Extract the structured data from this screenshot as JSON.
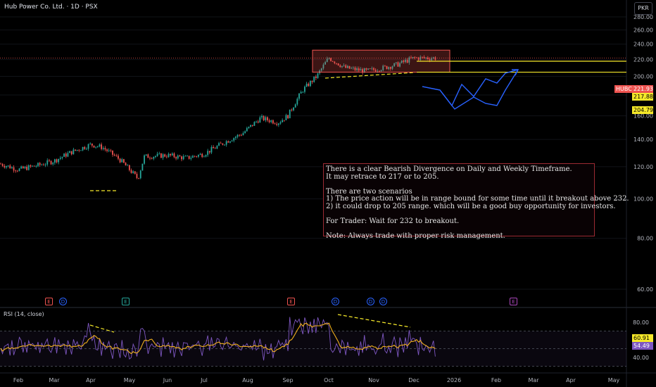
{
  "header": {
    "title": "Hub Power Co. Ltd. · 1D · PSX",
    "currency": "PKR"
  },
  "note": {
    "lines": [
      "There is a clear Bearish Divergence on Daily and Weekly Timeframe.",
      "It may retrace to 217 or to 205.",
      "",
      "There are two scenarios",
      "1) The price action will be in range bound for some time until it breakout above 232.",
      "2) it could drop to 205 range. which will be a good buy opportunity for investors.",
      "",
      "For Trader: Wait for 232 to breakout.",
      "",
      "Note: Always trade with proper risk management."
    ]
  },
  "price_tags": {
    "symbol": "HUBC",
    "last": "221.93",
    "level_1": "217.88",
    "level_2": "204.79"
  },
  "rsi": {
    "label": "RSI (14, close)",
    "tag_1": "60.91",
    "tag_2": "54.49"
  },
  "events": [
    {
      "letter": "E",
      "kind": "earnings",
      "month": "Mar"
    },
    {
      "letter": "D",
      "kind": "dividend",
      "month": "Mar"
    },
    {
      "letter": "E",
      "kind": "earnings-green",
      "month": "May"
    },
    {
      "letter": "E",
      "kind": "earnings",
      "month": "Sep"
    },
    {
      "letter": "D",
      "kind": "dividend",
      "month": "Oct"
    },
    {
      "letter": "D",
      "kind": "dividend",
      "month": "Nov"
    },
    {
      "letter": "D",
      "kind": "dividend",
      "month": "Nov"
    },
    {
      "letter": "E",
      "kind": "earnings-purple",
      "month": "Feb"
    }
  ],
  "colors": {
    "up": "#26a69a",
    "down": "#ef5350",
    "rsi": "#7e57c2",
    "rsi_ma": "#f2b01e",
    "level": "#f5e829",
    "projection": "#2962ff"
  },
  "chart_data": {
    "type": "candlestick",
    "title": "Hub Power Co. Ltd. · 1D · PSX",
    "x_tick_labels": [
      "Feb",
      "Mar",
      "Apr",
      "May",
      "Jun",
      "Jul",
      "Aug",
      "Sep",
      "Oct",
      "Nov",
      "Dec",
      "2026",
      "Feb",
      "Mar",
      "Apr",
      "May"
    ],
    "price_axis": {
      "ticks": [
        60,
        80,
        100,
        120,
        140,
        160,
        180,
        200,
        220,
        240,
        260,
        280
      ],
      "scale": "log"
    },
    "rsi_axis": {
      "ticks": [
        40,
        60,
        80
      ]
    },
    "close_path": [
      {
        "m": "Jan",
        "close": 122
      },
      {
        "m": "Feb",
        "close": 118
      },
      {
        "m": "Feb",
        "close": 121
      },
      {
        "m": "Mar",
        "close": 124
      },
      {
        "m": "Mar",
        "close": 130
      },
      {
        "m": "Apr",
        "close": 136
      },
      {
        "m": "Apr",
        "close": 134
      },
      {
        "m": "May",
        "close": 125
      },
      {
        "m": "May",
        "close": 112
      },
      {
        "m": "May",
        "close": 127
      },
      {
        "m": "Jun",
        "close": 128
      },
      {
        "m": "Jun",
        "close": 126
      },
      {
        "m": "Jul",
        "close": 129
      },
      {
        "m": "Jul",
        "close": 138
      },
      {
        "m": "Aug",
        "close": 145
      },
      {
        "m": "Aug",
        "close": 158
      },
      {
        "m": "Aug",
        "close": 154
      },
      {
        "m": "Sep",
        "close": 160
      },
      {
        "m": "Sep",
        "close": 185
      },
      {
        "m": "Sep",
        "close": 200
      },
      {
        "m": "Oct",
        "close": 222
      },
      {
        "m": "Oct",
        "close": 210
      },
      {
        "m": "Oct",
        "close": 206
      },
      {
        "m": "Nov",
        "close": 210
      },
      {
        "m": "Nov",
        "close": 214
      },
      {
        "m": "Dec",
        "close": 222
      },
      {
        "m": "Dec",
        "close": 221.93
      }
    ],
    "resistance_line": 232,
    "horizontal_levels": [
      217.88,
      204.79
    ],
    "range_box": {
      "low": 204.79,
      "high": 232
    },
    "annotations": [
      "There is a clear Bearish Divergence on Daily and Weekly Timeframe."
    ]
  }
}
